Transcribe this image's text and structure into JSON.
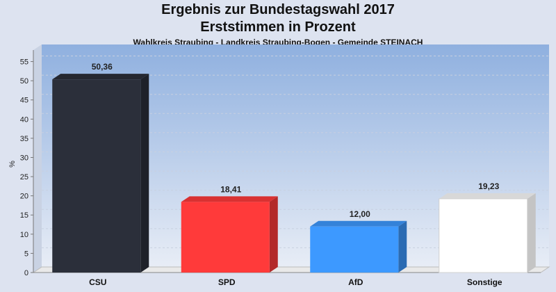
{
  "title": "Ergebnis zur Bundestagswahl 2017",
  "title2": "Erststimmen in Prozent",
  "subtitle": "Wahlkreis Straubing - Landkreis Straubing-Bogen - Gemeinde STEINACH",
  "chart_data": {
    "type": "bar",
    "title": "Ergebnis zur Bundestagswahl 2017",
    "subtitle": "Wahlkreis Straubing - Landkreis Straubing-Bogen - Gemeinde STEINACH",
    "xlabel": "",
    "ylabel": "%",
    "ylim": [
      0,
      58
    ],
    "yticks": [
      0,
      5,
      10,
      15,
      20,
      25,
      30,
      35,
      40,
      45,
      50,
      55
    ],
    "categories": [
      "CSU",
      "SPD",
      "AfD",
      "Sonstige"
    ],
    "values": [
      50.36,
      18.41,
      12.0,
      19.23
    ],
    "value_labels": [
      "50,36",
      "18,41",
      "12,00",
      "19,23"
    ],
    "colors": [
      "#2b2f3a",
      "#ff3a3a",
      "#3d99ff",
      "#ffffff"
    ],
    "grid": true,
    "legend": "none"
  }
}
